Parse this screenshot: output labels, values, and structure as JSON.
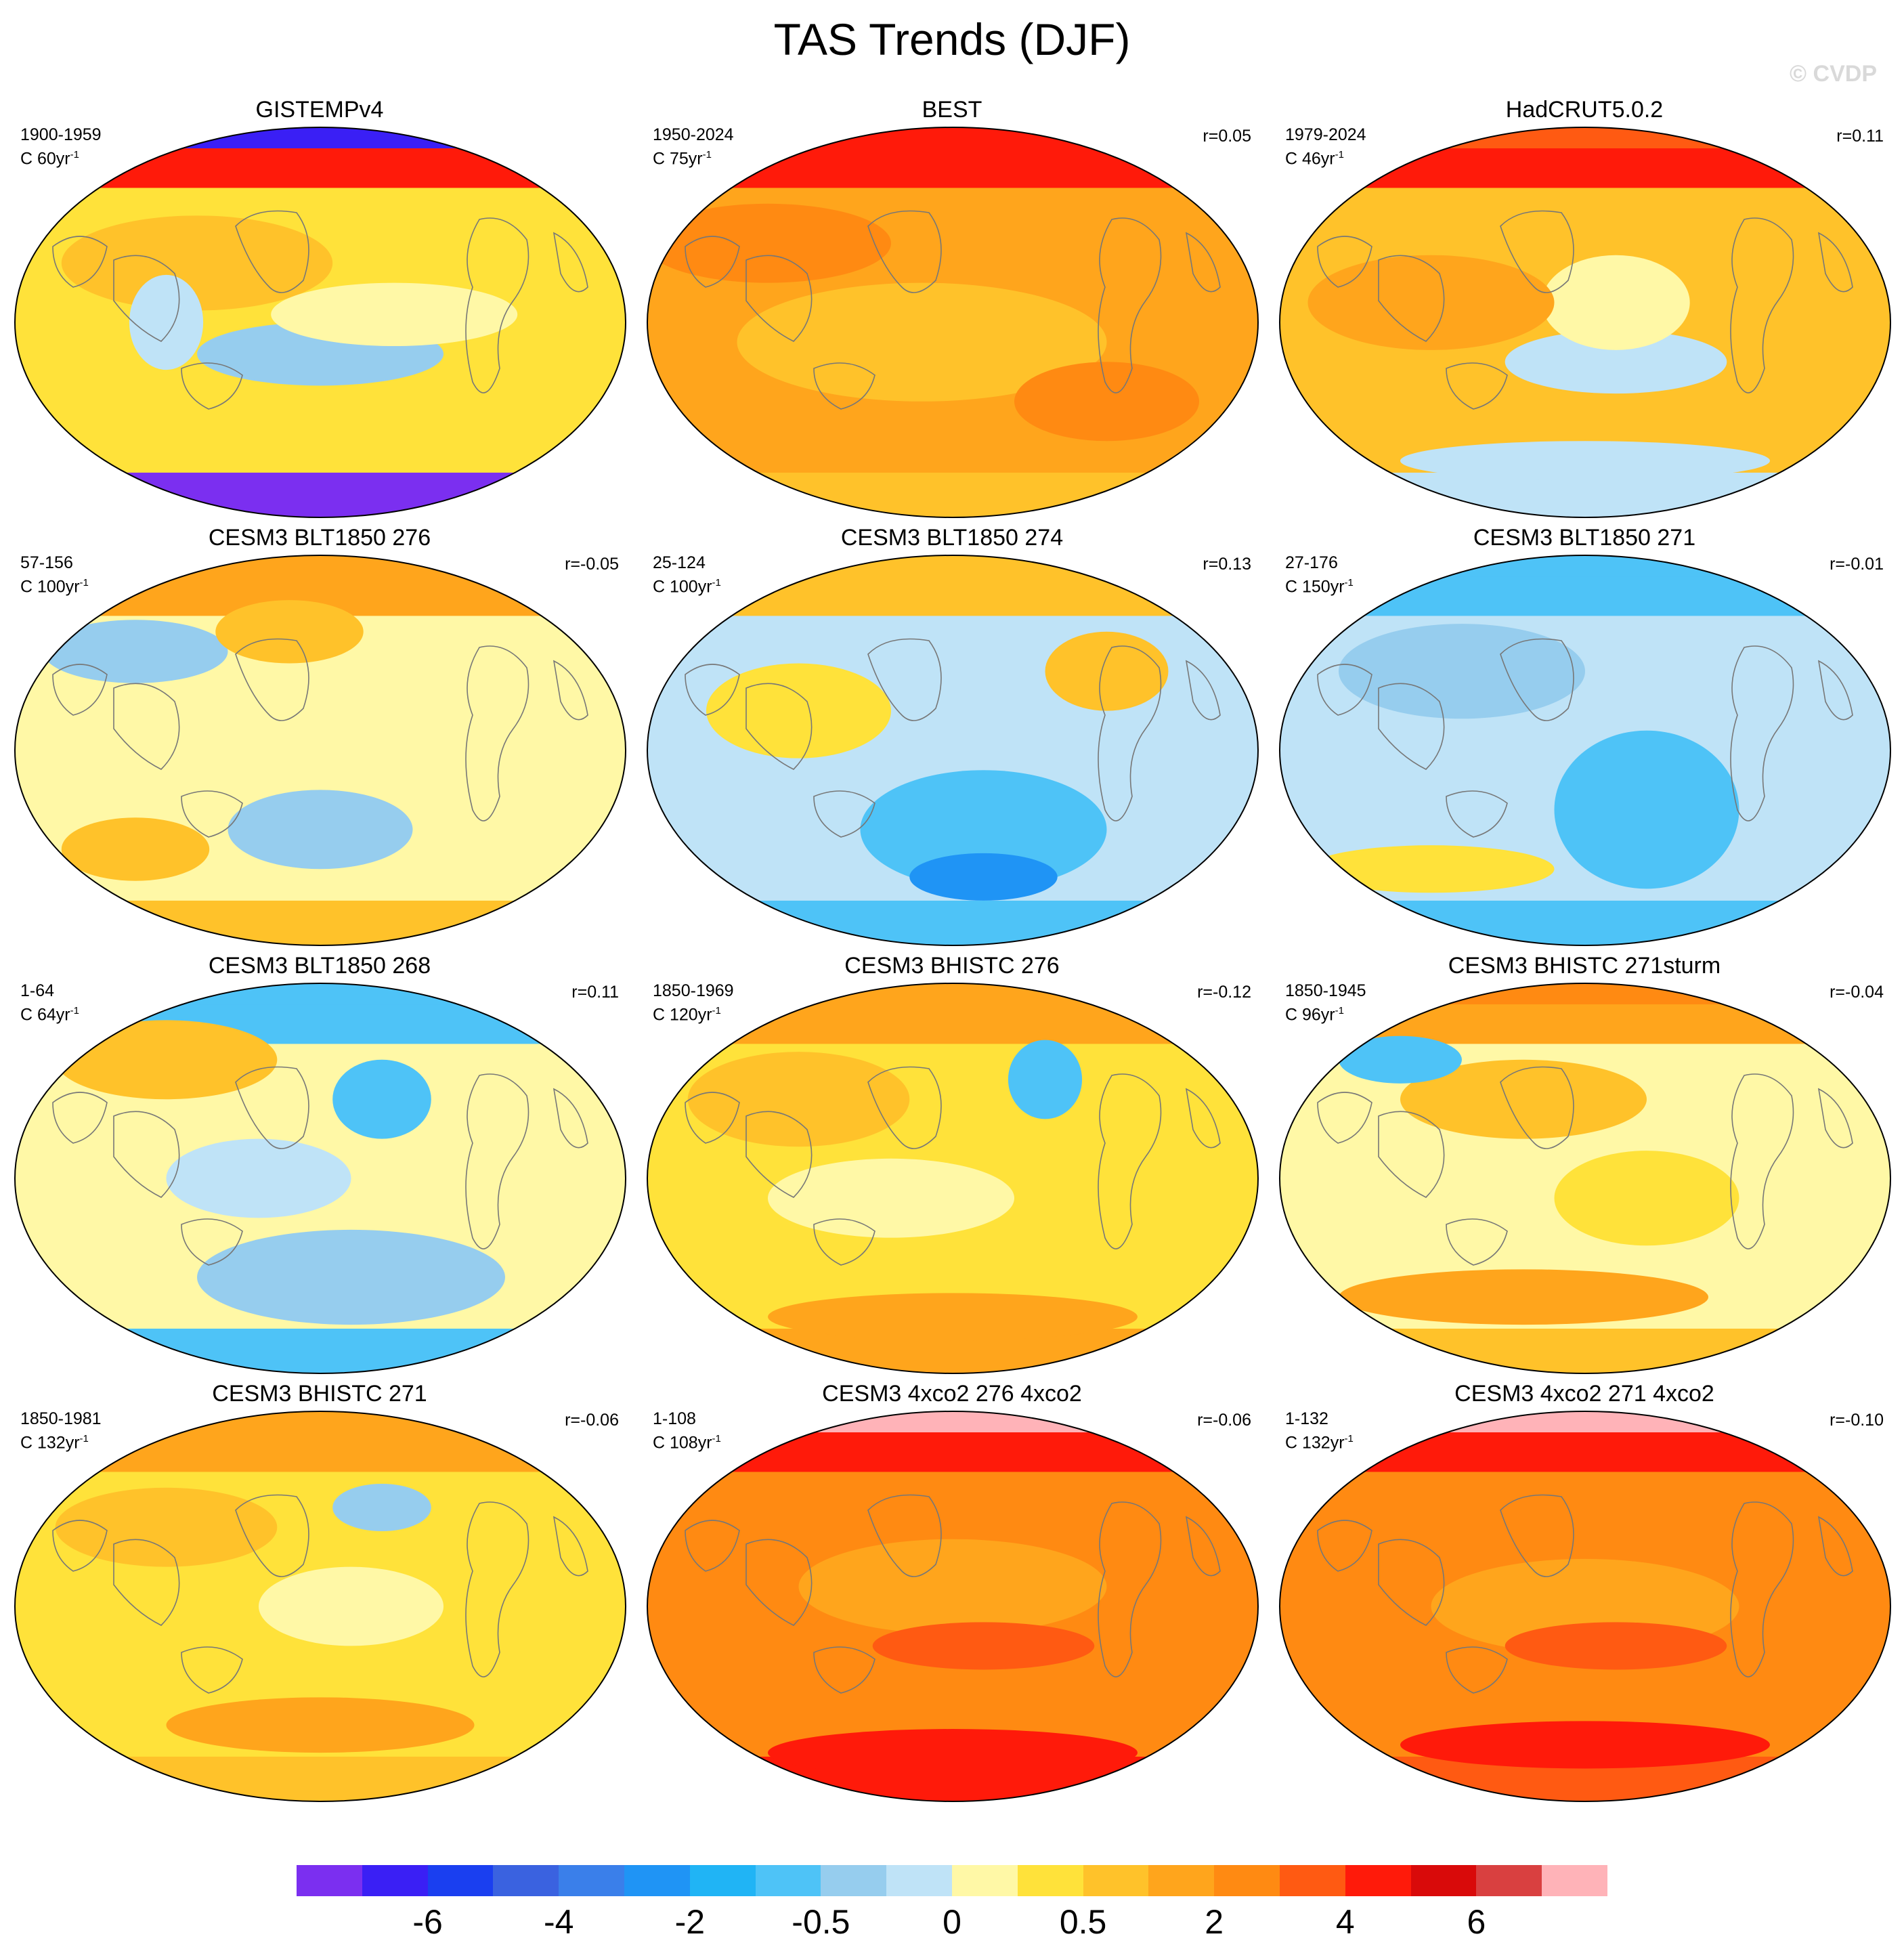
{
  "title": "TAS Trends (DJF)",
  "credit": "© CVDP",
  "panels": [
    {
      "title": "GISTEMPv4",
      "period": "1900-1959",
      "scale": "C 60yr",
      "corr": "",
      "style": "obs-gis"
    },
    {
      "title": "BEST",
      "period": "1950-2024",
      "scale": "C 75yr",
      "corr": "r=0.05",
      "style": "obs-warm"
    },
    {
      "title": "HadCRUT5.0.2",
      "period": "1979-2024",
      "scale": "C 46yr",
      "corr": "r=0.11",
      "style": "obs-had"
    },
    {
      "title": "CESM3 BLT1850 276",
      "period": "57-156",
      "scale": "C 100yr",
      "corr": "r=-0.05",
      "style": "ctl-mixed"
    },
    {
      "title": "CESM3 BLT1850 274",
      "period": "25-124",
      "scale": "C 100yr",
      "corr": "r=0.13",
      "style": "ctl-cool"
    },
    {
      "title": "CESM3 BLT1850 271",
      "period": "27-176",
      "scale": "C 150yr",
      "corr": "r=-0.01",
      "style": "ctl-cold"
    },
    {
      "title": "CESM3 BLT1850 268",
      "period": "1-64",
      "scale": "C 64yr",
      "corr": "r=0.11",
      "style": "ctl-mixed2"
    },
    {
      "title": "CESM3 BHISTC 276",
      "period": "1850-1969",
      "scale": "C 120yr",
      "corr": "r=-0.12",
      "style": "hist"
    },
    {
      "title": "CESM3 BHISTC 271sturm",
      "period": "1850-1945",
      "scale": "C 96yr",
      "corr": "r=-0.04",
      "style": "hist2"
    },
    {
      "title": "CESM3 BHISTC 271",
      "period": "1850-1981",
      "scale": "C 132yr",
      "corr": "r=-0.06",
      "style": "hist3"
    },
    {
      "title": "CESM3 4xco2 276 4xco2",
      "period": "1-108",
      "scale": "C 108yr",
      "corr": "r=-0.06",
      "style": "x4"
    },
    {
      "title": "CESM3 4xco2 271 4xco2",
      "period": "1-132",
      "scale": "C 132yr",
      "corr": "r=-0.10",
      "style": "x4b"
    }
  ],
  "scale_superscript": "-1",
  "colorbar": {
    "colors": [
      "#7b2ff0",
      "#3a1ff5",
      "#1a3ff0",
      "#3a62e0",
      "#3a7fea",
      "#1f94f5",
      "#20b4f5",
      "#4ec3f7",
      "#96cdee",
      "#bfe3f7",
      "#fff8a6",
      "#ffe23a",
      "#ffc22a",
      "#ffa51c",
      "#ff8a12",
      "#ff5a12",
      "#ff1a0a",
      "#d90a0a",
      "#d94040",
      "#ffb3b8"
    ],
    "ticks": [
      {
        "label": "-6",
        "index": 2
      },
      {
        "label": "-4",
        "index": 4
      },
      {
        "label": "-2",
        "index": 6
      },
      {
        "label": "-0.5",
        "index": 8
      },
      {
        "label": "0",
        "index": 10
      },
      {
        "label": "0.5",
        "index": 12
      },
      {
        "label": "2",
        "index": 14
      },
      {
        "label": "4",
        "index": 16
      },
      {
        "label": "6",
        "index": 18
      }
    ]
  }
}
